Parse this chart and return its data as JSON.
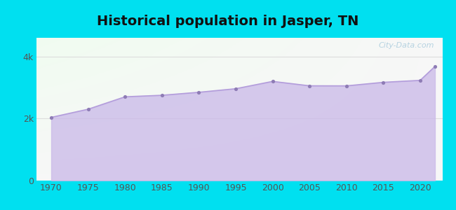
{
  "title": "Historical population in Jasper, TN",
  "years": [
    1970,
    1975,
    1980,
    1985,
    1990,
    1995,
    2000,
    2005,
    2010,
    2015,
    2020,
    2022
  ],
  "population": [
    2037,
    2300,
    2700,
    2749,
    2845,
    2960,
    3196,
    3054,
    3052,
    3166,
    3230,
    3678
  ],
  "yticks": [
    0,
    2000,
    4000
  ],
  "ytick_labels": [
    "0",
    "2k",
    "4k"
  ],
  "ylim": [
    0,
    4600
  ],
  "xlim": [
    1968,
    2023
  ],
  "xticks": [
    1970,
    1975,
    1980,
    1985,
    1990,
    1995,
    2000,
    2005,
    2010,
    2015,
    2020
  ],
  "line_color": "#b39ddb",
  "fill_color": "#c9b8e8",
  "dot_color": "#8e7cb5",
  "outer_bg": "#00e0f0",
  "plot_bg_white": "#f8fff8",
  "title_fontsize": 14,
  "tick_fontsize": 9,
  "watermark_text": "City-Data.com",
  "watermark_color": "#aaccdd",
  "grid_color": "#dddddd",
  "title_color": "#111111"
}
